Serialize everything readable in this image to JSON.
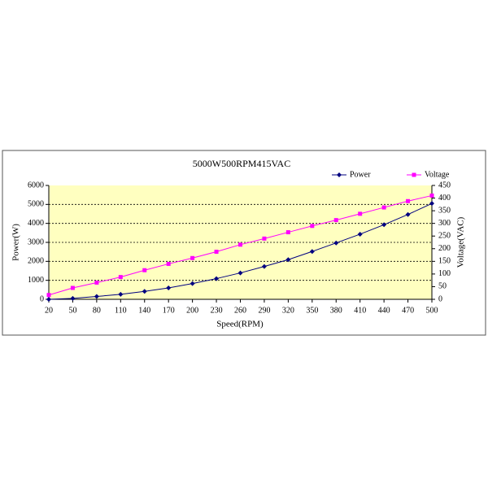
{
  "chart_data": {
    "type": "line",
    "title": "5000W500RPM415VAC",
    "x_label": "Speed(RPM)",
    "y_label": "Power(W)",
    "y2_label": "Voltage(VAC)",
    "x": [
      20,
      50,
      80,
      110,
      140,
      170,
      200,
      230,
      260,
      290,
      320,
      350,
      380,
      410,
      440,
      470,
      500
    ],
    "xlim": [
      20,
      500
    ],
    "xticks": [
      20,
      50,
      80,
      110,
      140,
      170,
      200,
      230,
      260,
      290,
      320,
      350,
      380,
      410,
      440,
      470,
      500
    ],
    "ylim": [
      0,
      6000
    ],
    "yticks": [
      0,
      1000,
      2000,
      3000,
      4000,
      5000,
      6000
    ],
    "y2lim": [
      0,
      450
    ],
    "y2ticks": [
      0,
      50,
      100,
      150,
      200,
      250,
      300,
      350,
      400,
      450
    ],
    "grid": true,
    "legend": "top-right",
    "series": [
      {
        "name": "Power",
        "color": "#000080",
        "marker": "diamond",
        "values": [
          0,
          50,
          150,
          260,
          420,
          600,
          830,
          1090,
          1390,
          1730,
          2090,
          2520,
          2970,
          3430,
          3930,
          4470,
          5050
        ]
      },
      {
        "name": "Voltage",
        "color": "#ff00ff",
        "marker": "square",
        "axis": "y2",
        "values": [
          17,
          45,
          66,
          88,
          115,
          140,
          163,
          188,
          216,
          240,
          265,
          290,
          313,
          338,
          363,
          388,
          410
        ]
      }
    ]
  }
}
